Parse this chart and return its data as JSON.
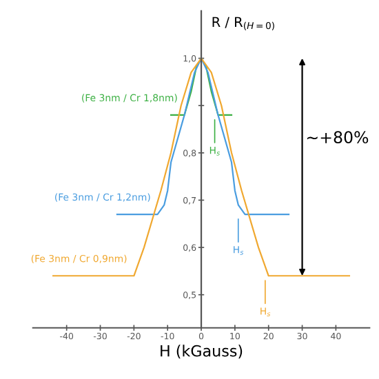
{
  "chart_data": {
    "type": "line",
    "xlabel": "H (kGauss)",
    "ylabel": "R / R$_{(H=0)}$",
    "xlim": [
      -50,
      50
    ],
    "ylim": [
      0.43,
      1.1
    ],
    "xticks": [
      -40,
      -30,
      -20,
      -10,
      0,
      10,
      20,
      30,
      40
    ],
    "yticks": [
      {
        "value": 0.5,
        "label": "0,5"
      },
      {
        "value": 0.6,
        "label": "0,6"
      },
      {
        "value": 0.7,
        "label": "0,7"
      },
      {
        "value": 0.8,
        "label": "0,8"
      },
      {
        "value": 0.9,
        "label": null
      },
      {
        "value": 1.0,
        "label": "1,0"
      }
    ],
    "grid": false,
    "marker": "none",
    "line_style": "solid",
    "series": [
      {
        "name": "(Fe 3nm / Cr 1,8nm)",
        "color": "#3cb043",
        "x": [
          -9,
          -5,
          -3,
          -1.5,
          0,
          1.5,
          3,
          5,
          9
        ],
        "values": [
          0.88,
          0.88,
          0.93,
          0.98,
          1.0,
          0.98,
          0.93,
          0.88,
          0.88
        ]
      },
      {
        "name": "(Fe 3nm / Cr 1,2nm)",
        "color": "#4a9de0",
        "x": [
          -25,
          -13,
          -11,
          -10,
          -9,
          -5,
          -2,
          0,
          2,
          5,
          9,
          10,
          11,
          13,
          26
        ],
        "values": [
          0.67,
          0.67,
          0.69,
          0.72,
          0.78,
          0.88,
          0.97,
          1.0,
          0.97,
          0.88,
          0.78,
          0.72,
          0.69,
          0.67,
          0.67
        ]
      },
      {
        "name": "(Fe 3nm / Cr 0,9nm)",
        "color": "#f0a830",
        "x": [
          -44,
          -20,
          -17,
          -12,
          -9,
          -6,
          -3,
          0,
          3,
          6,
          9,
          12,
          17,
          20,
          44
        ],
        "values": [
          0.54,
          0.54,
          0.6,
          0.72,
          0.8,
          0.9,
          0.97,
          1.0,
          0.97,
          0.9,
          0.8,
          0.72,
          0.6,
          0.54,
          0.54
        ]
      }
    ],
    "annotations": [
      {
        "text": "H$_{s}$",
        "x": 4,
        "y": 0.88
      },
      {
        "text": "H$_{s}$",
        "x": 11,
        "y": 0.67
      },
      {
        "text": "H$_{s}$",
        "x": 19,
        "y": 0.54
      },
      "~+80%"
    ]
  }
}
